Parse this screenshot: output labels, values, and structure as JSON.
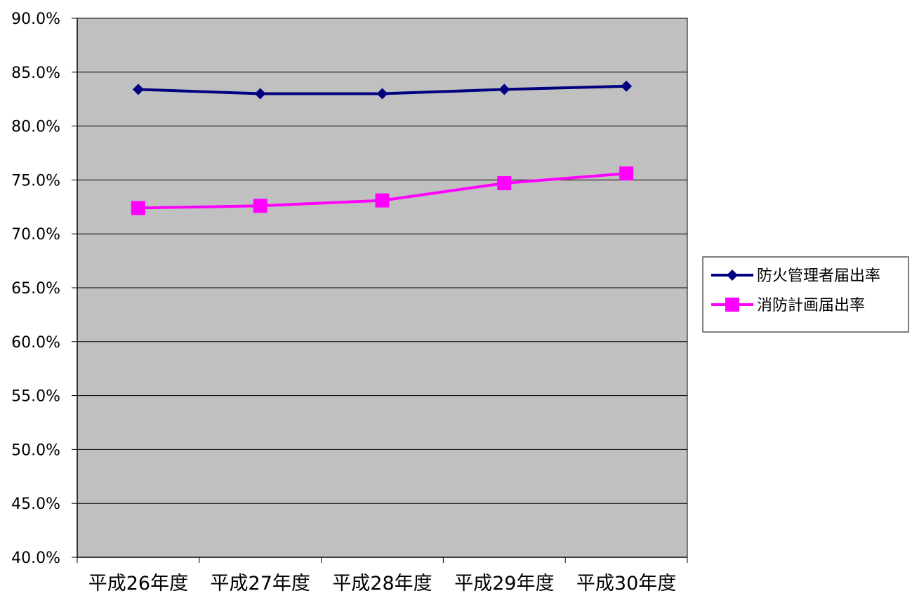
{
  "chart_data": {
    "type": "line",
    "categories": [
      "平成26年度",
      "平成27年度",
      "平成28年度",
      "平成29年度",
      "平成30年度"
    ],
    "series": [
      {
        "name": "防火管理者届出率",
        "color": "#000080",
        "marker": "diamond",
        "values": [
          83.4,
          83.0,
          83.0,
          83.4,
          83.7
        ]
      },
      {
        "name": "消防計画届出率",
        "color": "#ff00ff",
        "marker": "square",
        "values": [
          72.4,
          72.6,
          73.1,
          74.7,
          75.6
        ]
      }
    ],
    "ylim": [
      40,
      90
    ],
    "ytick_step": 5,
    "ytick_labels": [
      "40.0%",
      "45.0%",
      "50.0%",
      "55.0%",
      "60.0%",
      "65.0%",
      "70.0%",
      "75.0%",
      "80.0%",
      "85.0%",
      "90.0%"
    ],
    "grid": true,
    "plot_background": "#c0c0c0",
    "legend_position": "right"
  }
}
